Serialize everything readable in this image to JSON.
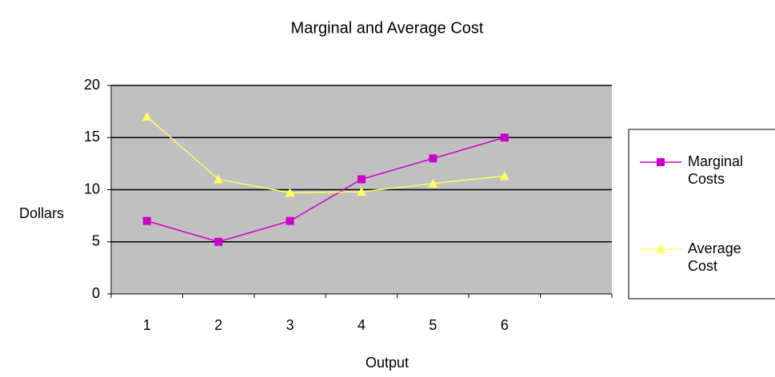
{
  "chart_data": {
    "type": "line",
    "title": "Marginal and Average Cost",
    "xlabel": "Output",
    "ylabel": "Dollars",
    "categories": [
      1,
      2,
      3,
      4,
      5,
      6,
      null
    ],
    "series": [
      {
        "name": "Marginal Costs",
        "color": "#cc00cc",
        "marker": "square",
        "values": [
          7,
          5,
          7,
          11,
          13,
          15,
          null
        ]
      },
      {
        "name": "Average Cost",
        "color": "#ffff66",
        "marker": "triangle",
        "values": [
          17,
          11,
          9.7,
          9.8,
          10.6,
          11.3,
          null
        ]
      }
    ],
    "ylim": [
      0,
      20
    ],
    "yticks": [
      0,
      5,
      10,
      15,
      20
    ],
    "grid": true,
    "legend": "right",
    "plot_background": "#c0c0c0"
  }
}
